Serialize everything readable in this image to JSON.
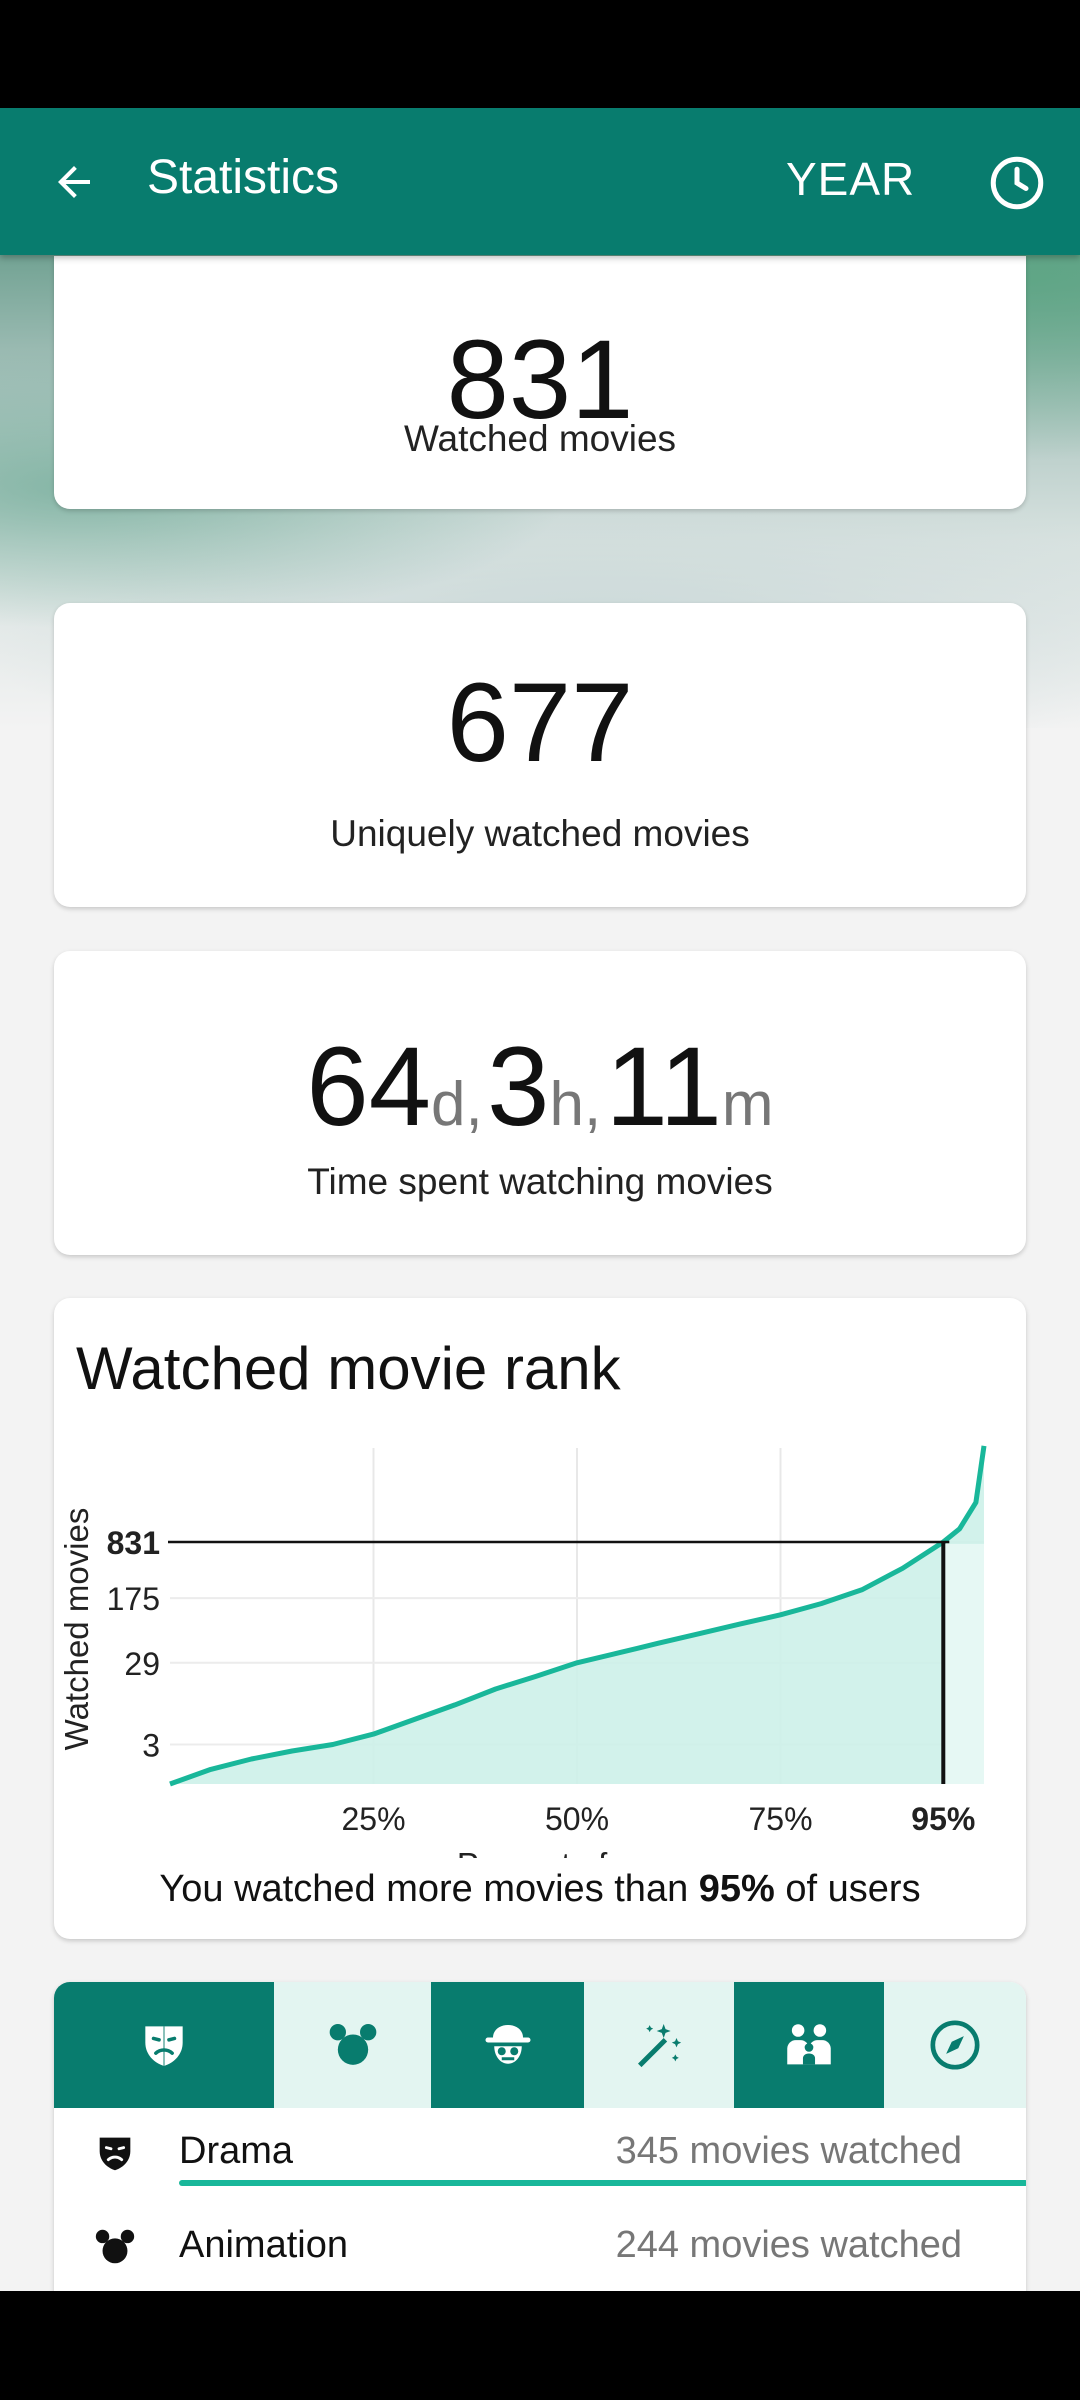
{
  "app_bar": {
    "title": "Statistics",
    "period_label": "YEAR",
    "back_icon": "arrow-left-icon",
    "history_icon": "clock-icon"
  },
  "stats": {
    "watched": {
      "value": "831",
      "label": "Watched movies"
    },
    "unique": {
      "value": "677",
      "label": "Uniquely watched movies"
    },
    "time": {
      "days": "64",
      "days_unit": "d,",
      "hours": "3",
      "hours_unit": "h,",
      "minutes": "11",
      "minutes_unit": "m",
      "label": "Time spent watching movies"
    }
  },
  "rank": {
    "title": "Watched movie rank",
    "caption_pre": "You watched more movies than ",
    "caption_bold": "95%",
    "caption_post": " of users"
  },
  "chart_data": {
    "type": "area",
    "title": "Watched movie rank",
    "xlabel": "Percent of users",
    "ylabel": "Watched movies",
    "x_ticks": [
      "25%",
      "50%",
      "75%",
      "95%"
    ],
    "y_ticks": [
      "3",
      "29",
      "175",
      "831"
    ],
    "highlight": {
      "x_percent": 95,
      "y_value": 831
    },
    "series": [
      {
        "x": [
          0,
          5,
          10,
          15,
          20,
          25,
          30,
          35,
          40,
          45,
          50,
          55,
          60,
          65,
          70,
          75,
          80,
          85,
          90,
          95,
          97,
          99,
          100
        ],
        "y": [
          1,
          1.5,
          2,
          2.5,
          3,
          4,
          6,
          9,
          14,
          20,
          29,
          38,
          50,
          65,
          85,
          110,
          150,
          220,
          400,
          831,
          1200,
          2500,
          12000
        ]
      }
    ],
    "colors": {
      "line": "#19b79a",
      "fill": "#cdf1e9"
    },
    "y_scale": "log"
  },
  "genre_tabs": [
    {
      "icon": "drama-mask-icon",
      "selected": true
    },
    {
      "icon": "mickey-animation-icon",
      "selected": false
    },
    {
      "icon": "detective-crime-icon",
      "selected": false
    },
    {
      "icon": "magic-wand-fantasy-icon",
      "selected": false
    },
    {
      "icon": "family-icon",
      "selected": false
    },
    {
      "icon": "compass-adventure-icon",
      "selected": false
    }
  ],
  "genres": [
    {
      "name": "Drama",
      "count": "345 movies watched",
      "icon": "drama-mask-icon",
      "fraction": 1.0
    },
    {
      "name": "Animation",
      "count": "244 movies watched",
      "icon": "mickey-animation-icon",
      "fraction": 0.707
    }
  ],
  "colors": {
    "brand": "#087c6e",
    "accent": "#19b79a",
    "tab_light": "#e3f5f1"
  }
}
